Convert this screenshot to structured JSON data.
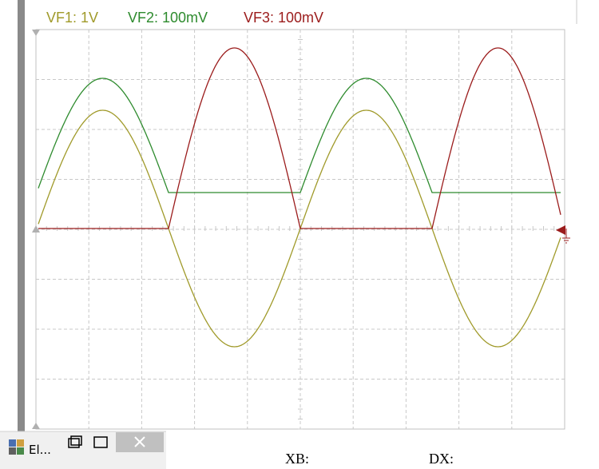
{
  "legend": [
    {
      "label": "VF1: 1V",
      "color": "#a09a2a"
    },
    {
      "label": "VF2: 100mV",
      "color": "#2e8b2e"
    },
    {
      "label": "VF3: 100mV",
      "color": "#9b1c1c"
    }
  ],
  "taskbar": {
    "label": "El..."
  },
  "readouts": [
    "XB:",
    "DX:"
  ]
}
